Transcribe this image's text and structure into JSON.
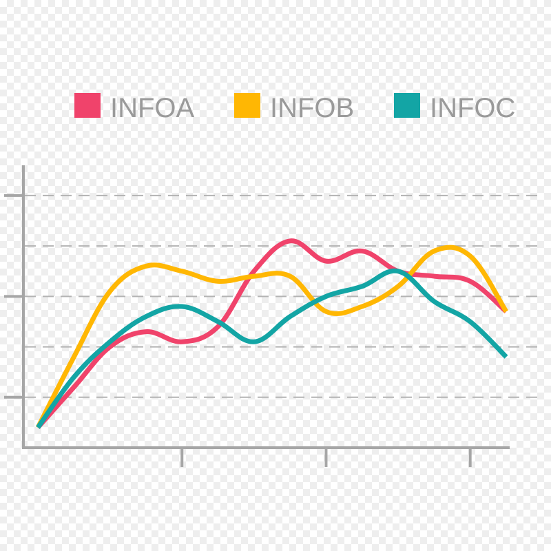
{
  "chart_data": {
    "type": "line",
    "title": "",
    "xlabel": "",
    "ylabel": "",
    "x": [
      0,
      1,
      2,
      3,
      4,
      5,
      6,
      7,
      8,
      9,
      10,
      11,
      12,
      13
    ],
    "xlim": [
      0,
      13.4
    ],
    "ylim": [
      0,
      5.6
    ],
    "yticks": [
      1,
      3,
      5
    ],
    "gridlines": [
      1,
      2,
      3,
      4,
      5
    ],
    "xticks": [
      4,
      8,
      12
    ],
    "grid": true,
    "legend_position": "top",
    "series": [
      {
        "name": "INFOA",
        "color": "#f0436b",
        "values": [
          0.4,
          1.2,
          2.0,
          2.3,
          2.1,
          2.4,
          3.5,
          4.1,
          3.7,
          3.9,
          3.5,
          3.4,
          3.3,
          2.7
        ]
      },
      {
        "name": "INFOB",
        "color": "#ffb703",
        "values": [
          0.4,
          1.8,
          3.1,
          3.6,
          3.5,
          3.3,
          3.4,
          3.4,
          2.7,
          2.8,
          3.2,
          3.9,
          3.8,
          2.7
        ]
      },
      {
        "name": "INFOC",
        "color": "#13a5a5",
        "values": [
          0.4,
          1.4,
          2.1,
          2.6,
          2.8,
          2.5,
          2.1,
          2.6,
          3.0,
          3.2,
          3.5,
          2.9,
          2.5,
          1.8
        ]
      }
    ]
  }
}
